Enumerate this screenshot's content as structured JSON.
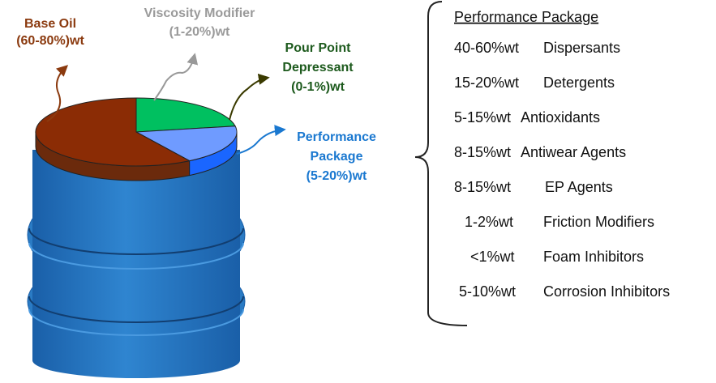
{
  "labels": [
    {
      "name": "Base Oil",
      "range": "(60-80%)wt"
    },
    {
      "name": "Viscosity Modifier",
      "range": "(1-20%)wt"
    },
    {
      "name": [
        "Pour Point",
        "Depressant"
      ],
      "range": "(0-1%)wt"
    },
    {
      "name": [
        "Performance",
        "Package"
      ],
      "range": "(5-20%)wt"
    }
  ],
  "package": {
    "title": "Performance Package",
    "items": [
      {
        "amount": "40-60%wt",
        "name": "Dispersants"
      },
      {
        "amount": "15-20%wt",
        "name": "Detergents"
      },
      {
        "amount": "5-15%wt",
        "name": "Antioxidants"
      },
      {
        "amount": "8-15%wt",
        "name": "Antiwear Agents"
      },
      {
        "amount": "8-15%wt",
        "name": "EP Agents"
      },
      {
        "amount": "1-2%wt",
        "name": "Friction Modifiers"
      },
      {
        "amount": "<1%wt",
        "name": "Foam Inhibitors"
      },
      {
        "amount": "5-10%wt",
        "name": "Corrosion Inhibitors"
      }
    ]
  }
}
